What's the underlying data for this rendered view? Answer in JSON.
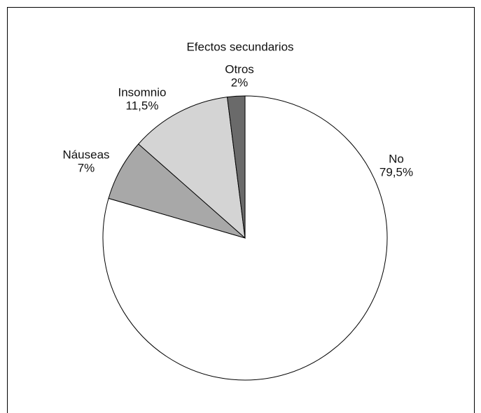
{
  "chart_data": {
    "type": "pie",
    "title": "Efectos secundarios",
    "categories": [
      "No",
      "Náuseas",
      "Insomnio",
      "Otros"
    ],
    "values": [
      79.5,
      7,
      11.5,
      2
    ],
    "value_labels": [
      "79,5%",
      "7%",
      "11,5%",
      "2%"
    ],
    "colors": [
      "#ffffff",
      "#a8a8a8",
      "#d4d4d4",
      "#6a6a6a"
    ]
  }
}
